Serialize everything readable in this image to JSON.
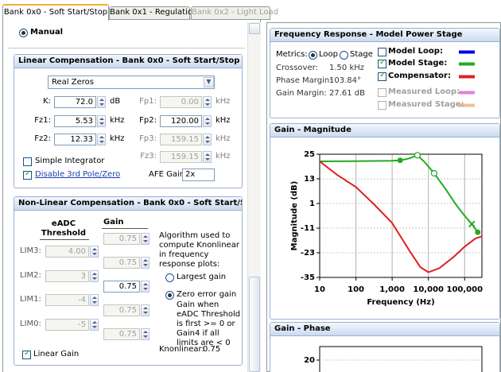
{
  "tabs": [
    "Bank 0x0 - Soft Start/Stop",
    "Bank 0x1 - Regulation",
    "Bank 0x2 - Light Load"
  ],
  "mode": "Manual",
  "linear": {
    "title": "Linear Compensation - Bank 0x0 - Soft Start/Stop",
    "zero_type": "Real Zeros",
    "fields": [
      {
        "label": "K:",
        "value": "72.0",
        "unit": "dB",
        "enabled": true
      },
      {
        "label": "Fz1:",
        "value": "5.53",
        "unit": "kHz",
        "enabled": true
      },
      {
        "label": "Fz2:",
        "value": "12.33",
        "unit": "kHz",
        "enabled": true
      },
      {
        "label": "Fp1:",
        "value": "0.00",
        "unit": "kHz",
        "enabled": false
      },
      {
        "label": "Fp2:",
        "value": "120.00",
        "unit": "kHz",
        "enabled": true
      },
      {
        "label": "Fp3:",
        "value": "159.15",
        "unit": "kHz",
        "enabled": false
      },
      {
        "label": "Fz3:",
        "value": "159.15",
        "unit": "kHz",
        "enabled": false
      }
    ],
    "simple_integrator": {
      "label": "Simple Integrator",
      "checked": false
    },
    "disable_3rd": {
      "label": "Disable 3rd Pole/Zero",
      "checked": true
    },
    "afe_gain_label": "AFE Gain:",
    "afe_gain": "2x"
  },
  "nonlinear": {
    "title": "Non-Linear Compensation - Bank 0x0 - Soft Start/Stop",
    "threshold_header": "eADC Threshold",
    "gain_header": "Gain",
    "limits": [
      {
        "label": "LIM3:",
        "value": "4.00"
      },
      {
        "label": "LIM2:",
        "value": "3"
      },
      {
        "label": "LIM1:",
        "value": "-4"
      },
      {
        "label": "LIM0:",
        "value": "-5"
      }
    ],
    "gains": [
      {
        "value": "0.75",
        "enabled": false
      },
      {
        "value": "0.75",
        "enabled": false
      },
      {
        "value": "0.75",
        "enabled": true
      },
      {
        "value": "0.75",
        "enabled": false
      },
      {
        "value": "0.75",
        "enabled": false
      }
    ],
    "algorithm_text": "Algorithm used to compute Knonlinear in frequency response plots:",
    "options": [
      {
        "label": "Largest gain",
        "selected": false
      },
      {
        "label": "Zero error gain",
        "selected": true
      }
    ],
    "option_note": "Gain when eADC Threshold is first >= 0 or Gain4 if all limits are < 0",
    "knonlinear_label": "Knonlinear:",
    "knonlinear": "0.75",
    "linear_gain": {
      "label": "Linear Gain",
      "checked": true
    }
  },
  "freq_response": {
    "title": "Frequency Response - Model Power Stage",
    "metrics_label": "Metrics:",
    "metrics_options": [
      {
        "label": "Loop",
        "selected": true
      },
      {
        "label": "Stage",
        "selected": false
      }
    ],
    "stats": [
      {
        "label": "Crossover:",
        "value": "1.50 kHz"
      },
      {
        "label": "Phase Margin:",
        "value": "103.84°"
      },
      {
        "label": "Gain Margin:",
        "value": "27.61 dB"
      }
    ]
  },
  "chart_data": [
    {
      "type": "line",
      "title": "Gain - Magnitude",
      "xlabel": "Frequency (Hz)",
      "ylabel": "Magnitude (dB)",
      "log_x": true,
      "grid": true,
      "xlim": [
        10,
        300000
      ],
      "xticks": [
        10,
        100,
        {
          "value": 1000,
          "label": "1,000"
        },
        {
          "value": 10000,
          "label": "10,000"
        },
        {
          "value": 100000,
          "label": "100,000"
        }
      ],
      "ylim": [
        -35,
        25
      ],
      "yticks": [
        -35,
        -23,
        -11,
        1,
        13,
        25
      ],
      "series": [
        {
          "name": "Model Loop:",
          "color": "#0000e0",
          "checked": false,
          "enabled": true,
          "x": [],
          "values": []
        },
        {
          "name": "Model Stage:",
          "color": "#22aa22",
          "checked": true,
          "enabled": true,
          "x": [
            10,
            100,
            1000,
            1660,
            3000,
            5000,
            8000,
            14400,
            30000,
            60000,
            100000,
            158000,
            230000
          ],
          "values": [
            21.5,
            21.6,
            21.8,
            22,
            23,
            24.5,
            21,
            15.7,
            8,
            0,
            -5,
            -9,
            -13
          ],
          "markers": [
            {
              "x": 1660,
              "y": 22,
              "shape": "dot"
            },
            {
              "x": 5000,
              "y": 24.5,
              "shape": "circle"
            },
            {
              "x": 14400,
              "y": 15.7,
              "shape": "circle"
            },
            {
              "x": 158000,
              "y": -9,
              "shape": "cross"
            },
            {
              "x": 230000,
              "y": -13,
              "shape": "dot"
            }
          ]
        },
        {
          "name": "Compensator:",
          "color": "#e02020",
          "checked": true,
          "enabled": true,
          "x": [
            10,
            30,
            100,
            300,
            1000,
            3000,
            6000,
            10000,
            20000,
            50000,
            100000,
            200000,
            300000
          ],
          "values": [
            21.5,
            15,
            9,
            1,
            -8.5,
            -22,
            -30,
            -32.5,
            -30.5,
            -25,
            -20,
            -16,
            -15
          ]
        },
        {
          "name": "Measured Loop:",
          "color": "#e080e0",
          "checked": false,
          "enabled": false,
          "x": [],
          "values": []
        },
        {
          "name": "Measured Stage:",
          "color": "#f0c090",
          "checked": false,
          "enabled": false,
          "x": [],
          "values": []
        }
      ]
    },
    {
      "type": "line",
      "title": "Gain - Phase",
      "yticks": [
        20
      ]
    }
  ]
}
